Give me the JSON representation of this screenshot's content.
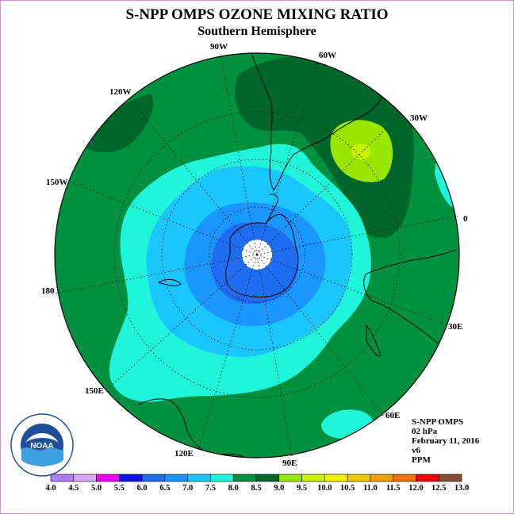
{
  "header": {
    "title": "S-NPP OMPS OZONE MIXING RATIO",
    "subtitle": "Southern Hemisphere"
  },
  "map": {
    "projection": "polar-stereographic-south",
    "longitude_labels": [
      "90W",
      "60W",
      "30W",
      "0",
      "30E",
      "60E",
      "90E",
      "120E",
      "150E",
      "180",
      "150W",
      "120W"
    ],
    "colors": {
      "c8_0": "#009140",
      "c8_5": "#00672c",
      "c9_0": "#99e600",
      "c9_5": "#c8f200",
      "c7_5": "#1ff5d8",
      "c7_0": "#1ac6ff",
      "c6_5": "#1a96ff",
      "c6_0": "#1e6cf0",
      "pole": "#ffffff"
    }
  },
  "info": {
    "instrument": "S-NPP OMPS",
    "level": "02 hPa",
    "date": "February 11, 2016",
    "version": "v6",
    "unit": "PPM"
  },
  "logo": {
    "text": "NOAA",
    "icon": "noaa-logo"
  },
  "colorbar": {
    "ticks": [
      "4.0",
      "4.5",
      "5.0",
      "5.5",
      "6.0",
      "6.5",
      "7.0",
      "7.5",
      "8.0",
      "8.5",
      "9.0",
      "9.5",
      "10.0",
      "10.5",
      "11.0",
      "11.5",
      "12.0",
      "12.5",
      "13.0"
    ],
    "colors": [
      "#b07ef0",
      "#d8a8f0",
      "#f000f0",
      "#1010e8",
      "#1e6cf0",
      "#1a96ff",
      "#1ac6ff",
      "#1ff5d8",
      "#009140",
      "#00672c",
      "#99e600",
      "#c8f200",
      "#f0f000",
      "#f0c800",
      "#f0a000",
      "#f07000",
      "#f00000",
      "#805030"
    ]
  }
}
